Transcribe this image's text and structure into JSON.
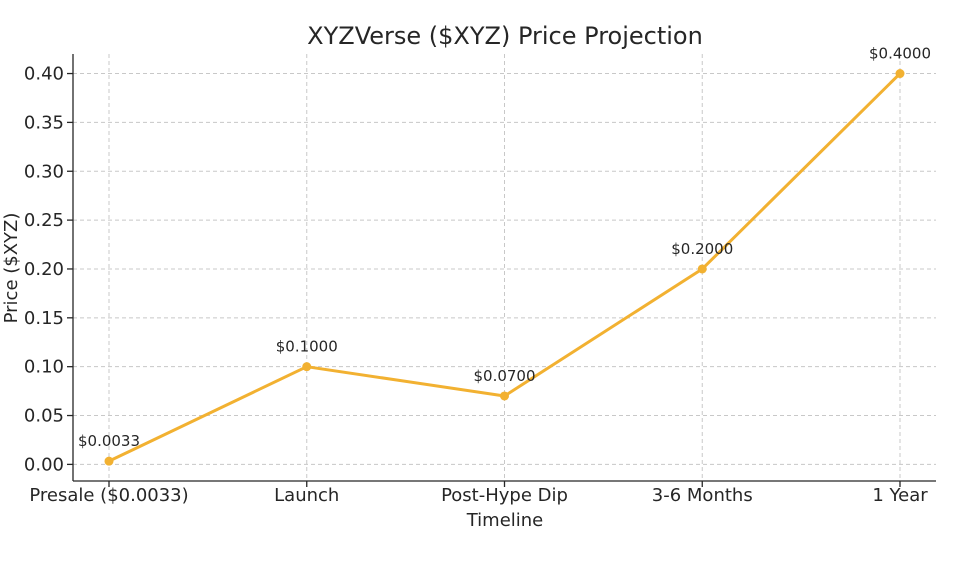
{
  "chart_data": {
    "type": "line",
    "title": "XYZVerse ($XYZ) Price Projection",
    "xlabel": "Timeline",
    "ylabel": "Price ($XYZ)",
    "categories": [
      "Presale ($0.0033)",
      "Launch",
      "Post-Hype Dip",
      "3-6 Months",
      "1 Year"
    ],
    "series": [
      {
        "values": [
          0.0033,
          0.1,
          0.07,
          0.2,
          0.4
        ],
        "labels": [
          "$0.0033",
          "$0.1000",
          "$0.0700",
          "$0.2000",
          "$0.4000"
        ],
        "color": "#f2b131"
      }
    ],
    "yticks": [
      0.0,
      0.05,
      0.1,
      0.15,
      0.2,
      0.25,
      0.3,
      0.35,
      0.4
    ],
    "ytick_labels": [
      "0.00",
      "0.05",
      "0.10",
      "0.15",
      "0.20",
      "0.25",
      "0.30",
      "0.35",
      "0.40"
    ],
    "ylim": [
      -0.017,
      0.42
    ],
    "grid": true,
    "legend": false
  }
}
